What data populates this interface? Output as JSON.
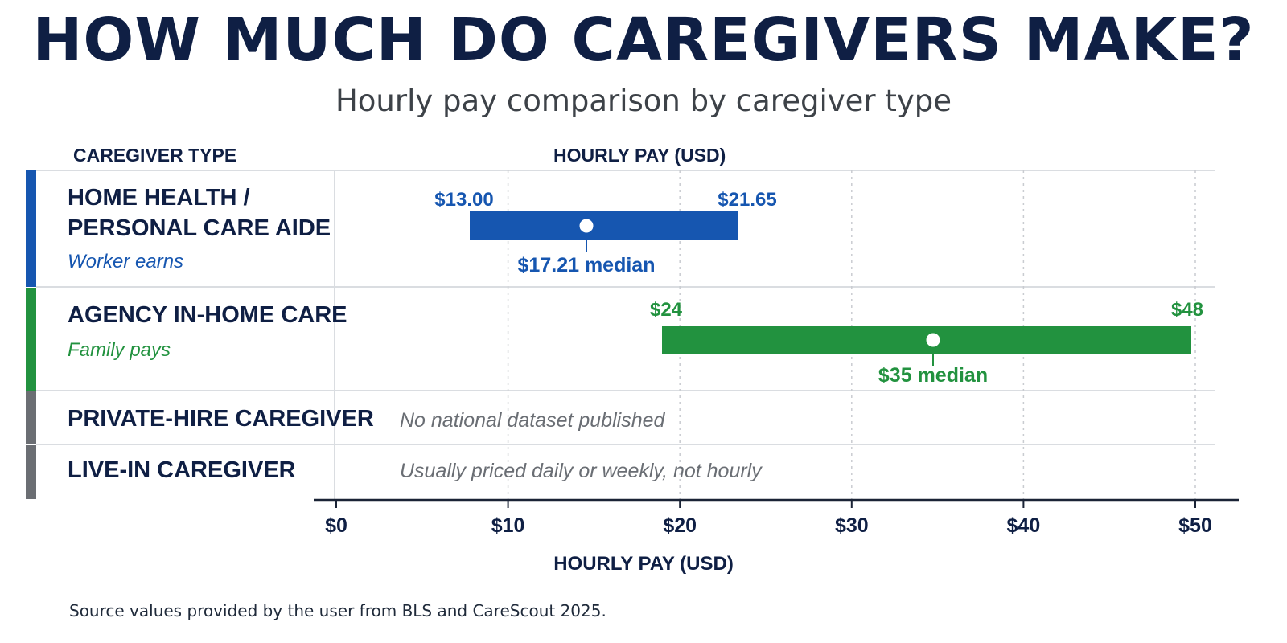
{
  "title": "HOW MUCH DO CAREGIVERS MAKE?",
  "subtitle": "Hourly pay comparison by caregiver type",
  "column_headers": {
    "type": "CAREGIVER TYPE",
    "pay": "HOURLY PAY (USD)"
  },
  "rows": [
    {
      "title": "HOME HEALTH /\nPERSONAL CARE AIDE",
      "subtitle": "Worker earns",
      "color": "#1656b0"
    },
    {
      "title": "AGENCY IN-HOME CARE",
      "subtitle": "Family pays",
      "color": "#22923f"
    },
    {
      "title": "PRIVATE-HIRE CAREGIVER",
      "note": "No national dataset published",
      "color": "#6b6e73"
    },
    {
      "title": "LIVE-IN CAREGIVER",
      "note": "Usually priced daily or weekly, not hourly",
      "color": "#6b6e73"
    }
  ],
  "source": "Source values provided by the user from BLS and CareScout 2025.",
  "chart_data": {
    "type": "range-bar",
    "xlabel": "HOURLY PAY (USD)",
    "xlim": [
      0,
      50
    ],
    "xticks": [
      0,
      10,
      20,
      30,
      40,
      50
    ],
    "xtick_labels": [
      "$0",
      "$10",
      "$20",
      "$30",
      "$40",
      "$50"
    ],
    "grid": "vertical dotted",
    "series": [
      {
        "category": "HOME HEALTH / PERSONAL CARE AIDE",
        "low": 13.0,
        "high": 21.65,
        "median": 17.21,
        "low_label": "$13.00",
        "high_label": "$21.65",
        "median_label": "$17.21 median",
        "color": "#1656b0"
      },
      {
        "category": "AGENCY IN-HOME CARE",
        "low": 24,
        "high": 48,
        "median": 35,
        "low_label": "$24",
        "high_label": "$48",
        "median_label": "$35 median",
        "color": "#22923f"
      }
    ]
  }
}
